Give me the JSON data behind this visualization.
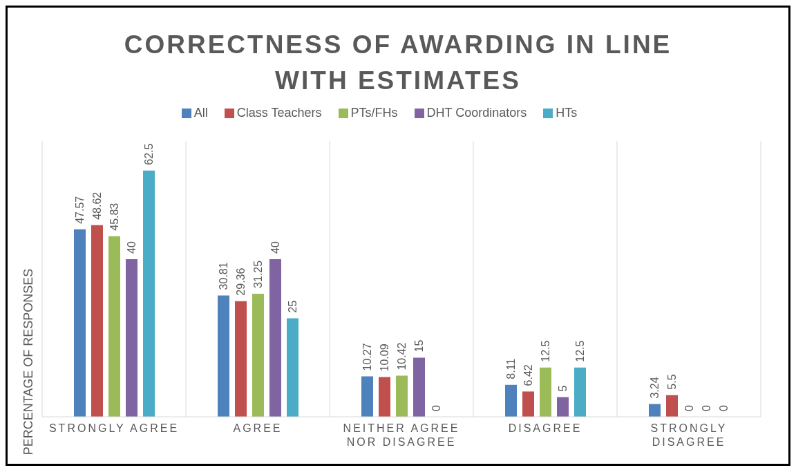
{
  "chart_data": {
    "type": "bar",
    "title": "CORRECTNESS OF AWARDING IN LINE WITH ESTIMATES",
    "ylabel": "PERCENTAGE OF RESPONSES",
    "categories": [
      "STRONGLY AGREE",
      "AGREE",
      "NEITHER AGREE NOR DISAGREE",
      "DISAGREE",
      "STRONGLY DISAGREE"
    ],
    "series": [
      {
        "name": "All",
        "color": "#4f81bd",
        "values": [
          47.57,
          30.81,
          10.27,
          8.11,
          3.24
        ]
      },
      {
        "name": "Class Teachers",
        "color": "#c0504d",
        "values": [
          48.62,
          29.36,
          10.09,
          6.42,
          5.5
        ]
      },
      {
        "name": "PTs/FHs",
        "color": "#9bbb59",
        "values": [
          45.83,
          31.25,
          10.42,
          12.5,
          0
        ]
      },
      {
        "name": "DHT Coordinators",
        "color": "#8064a2",
        "values": [
          40,
          40,
          15,
          5,
          0
        ]
      },
      {
        "name": "HTs",
        "color": "#4bacc6",
        "values": [
          62.5,
          25,
          0,
          12.5,
          0
        ]
      }
    ],
    "data_labels": true,
    "grid": "x",
    "legend": "top",
    "tick_labels": "x"
  }
}
